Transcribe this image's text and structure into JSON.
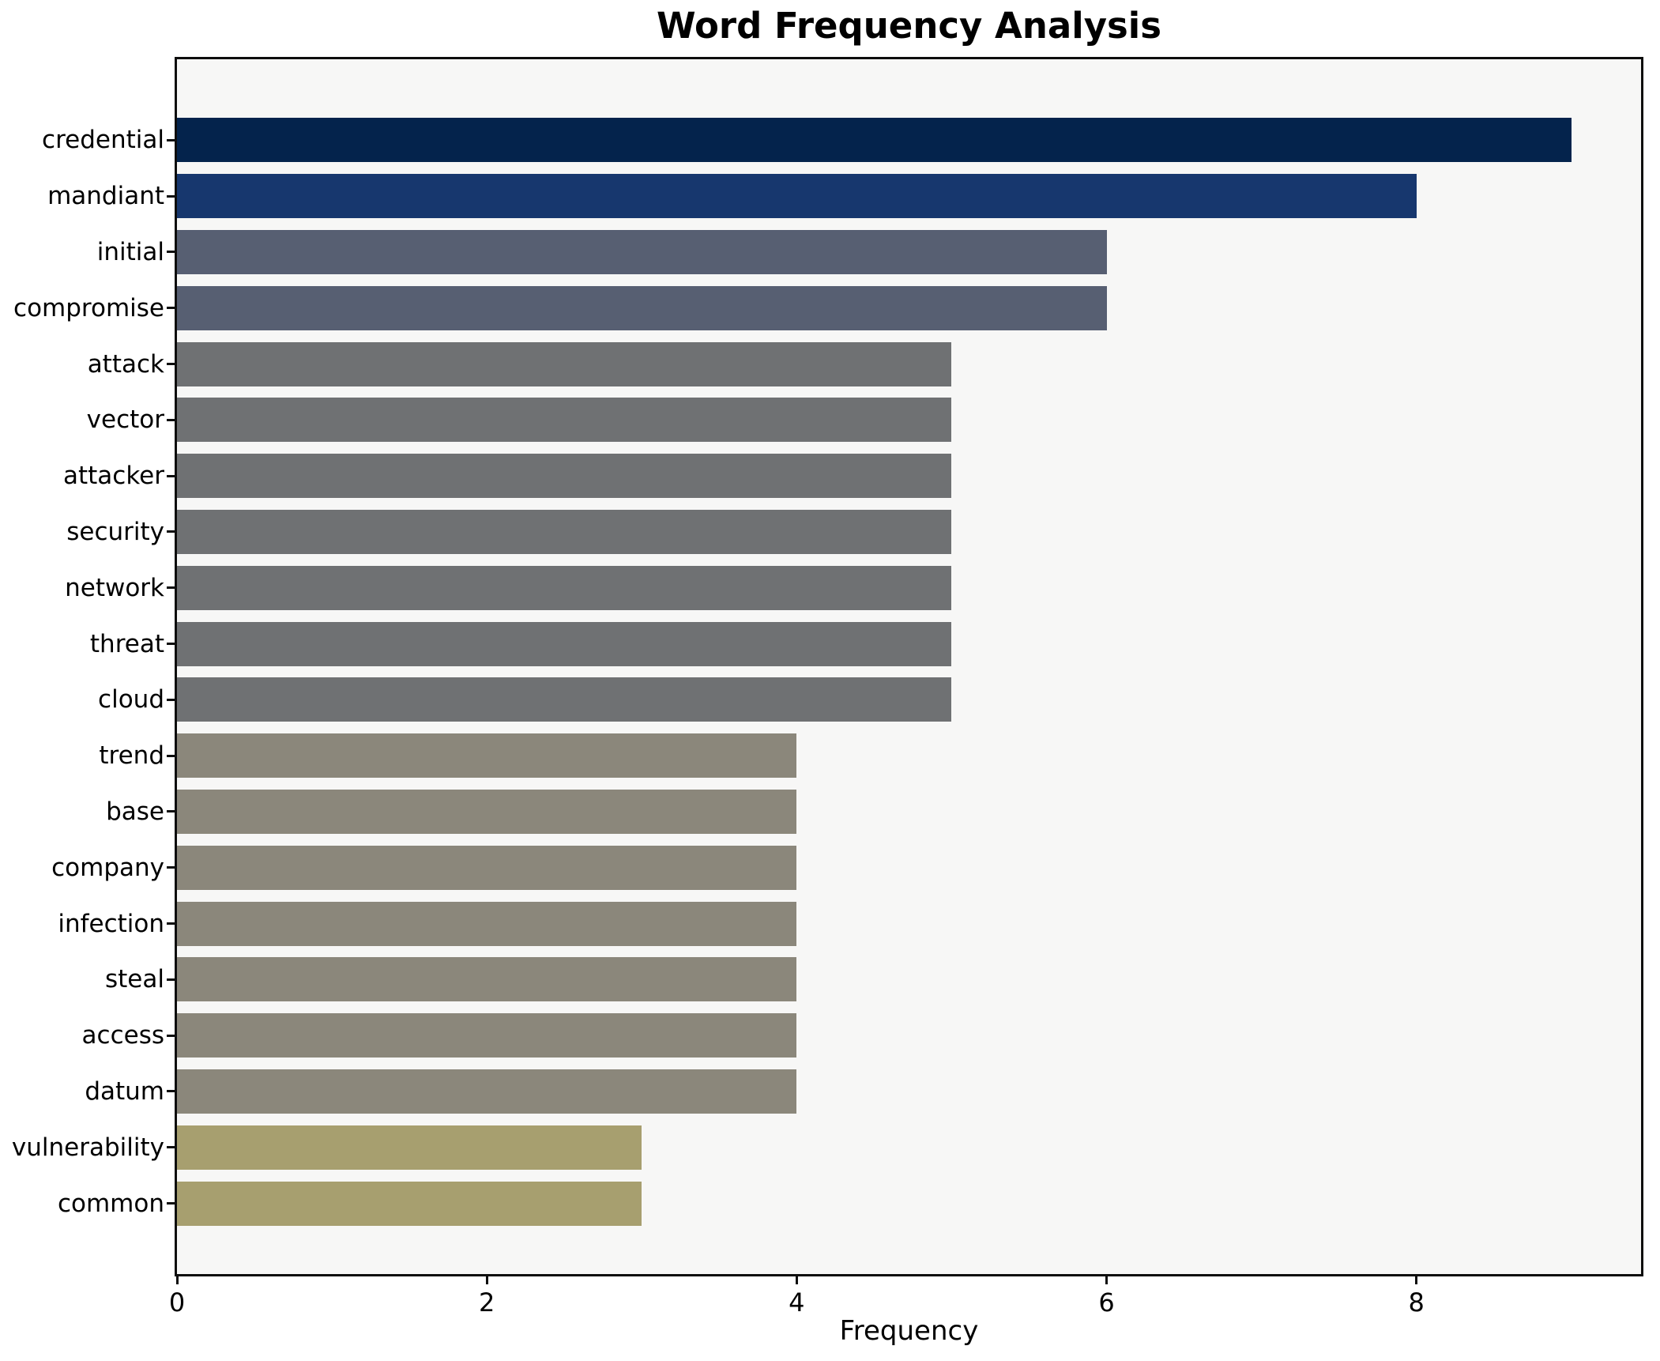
{
  "chart_data": {
    "type": "bar",
    "orientation": "horizontal",
    "title": "Word Frequency Analysis",
    "xlabel": "Frequency",
    "ylabel": "",
    "grid": false,
    "legend": false,
    "xlim": [
      0,
      9.45
    ],
    "x_ticks": [
      0,
      2,
      4,
      6,
      8
    ],
    "plot_background": "#f7f7f6",
    "figure_background": "#ffffff",
    "spine_color": "#0d0d0d",
    "categories": [
      "credential",
      "mandiant",
      "initial",
      "compromise",
      "attack",
      "vector",
      "attacker",
      "security",
      "network",
      "threat",
      "cloud",
      "trend",
      "base",
      "company",
      "infection",
      "steal",
      "access",
      "datum",
      "vulnerability",
      "common"
    ],
    "values": [
      9,
      8,
      6,
      6,
      5,
      5,
      5,
      5,
      5,
      5,
      5,
      4,
      4,
      4,
      4,
      4,
      4,
      4,
      3,
      3
    ],
    "bar_colors": [
      "#04234c",
      "#17376e",
      "#575f72",
      "#575f72",
      "#6f7173",
      "#6f7173",
      "#6f7173",
      "#6f7173",
      "#6f7173",
      "#6f7173",
      "#6f7173",
      "#8b877b",
      "#8b877b",
      "#8b877b",
      "#8b877b",
      "#8b877b",
      "#8b877b",
      "#8b877b",
      "#a79f6f",
      "#a79f6f"
    ]
  }
}
